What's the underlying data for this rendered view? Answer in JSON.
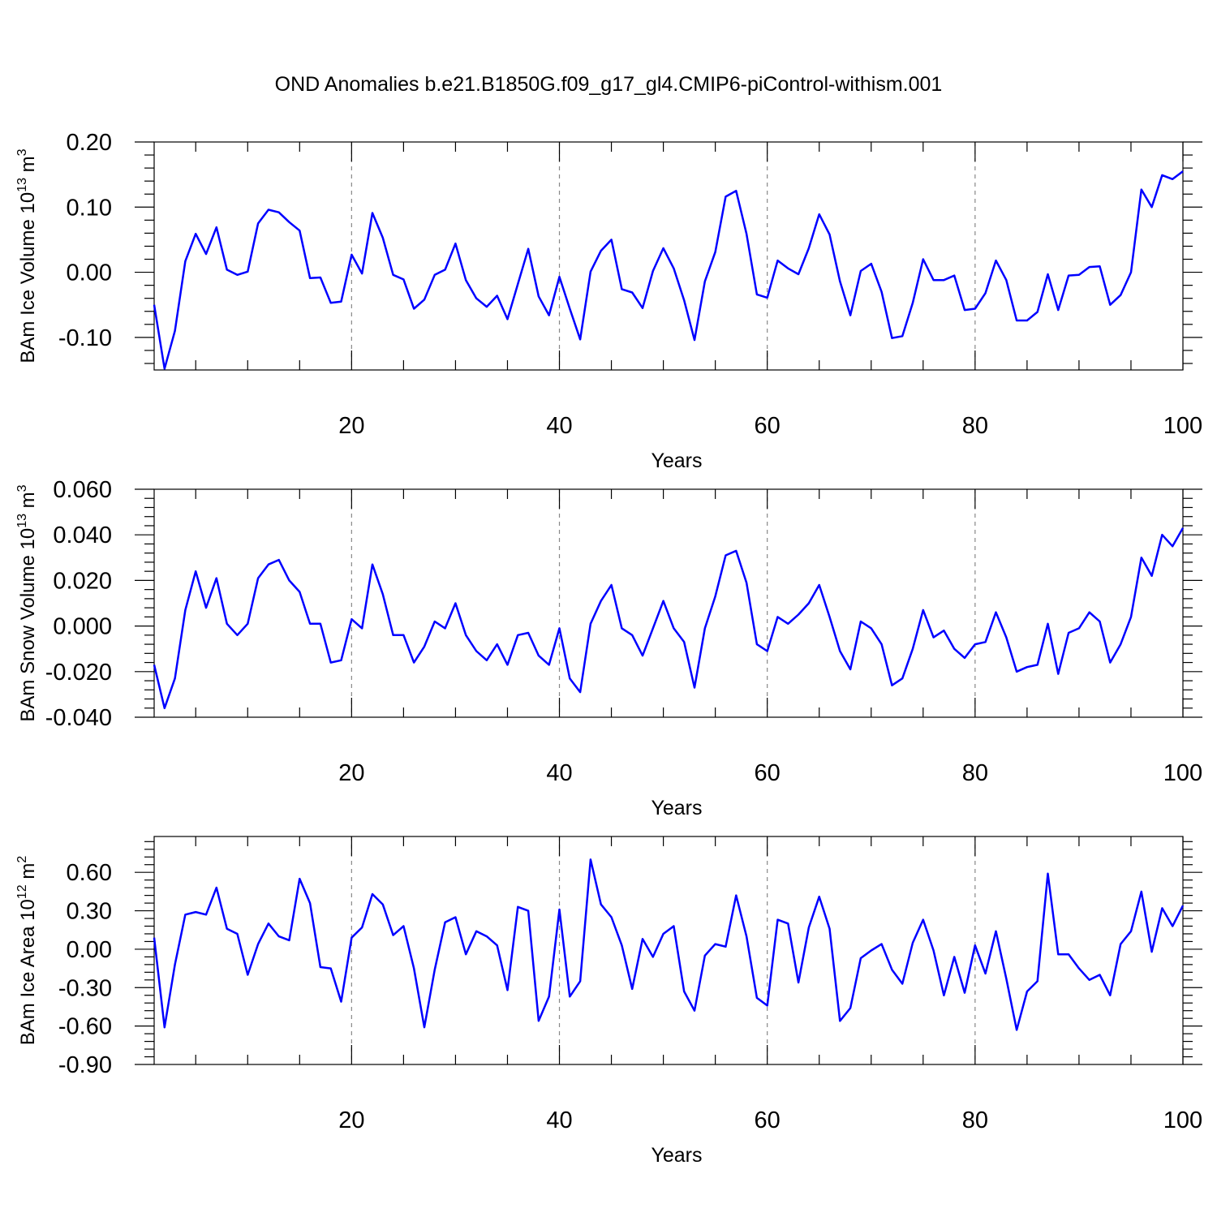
{
  "title": "OND Anomalies b.e21.B1850G.f09_g17_gl4.CMIP6-piControl-withism.001",
  "line_color": "#0000ff",
  "chart_data": [
    {
      "type": "line",
      "xlabel": "Years",
      "ylabel": {
        "prefix": "BAm Ice Volume 10",
        "exp": "13",
        "unit": " m",
        "unit_exp": "3"
      },
      "xlim": [
        1,
        100
      ],
      "ylim": [
        -0.15,
        0.2
      ],
      "xticks": [
        20,
        40,
        60,
        80,
        100
      ],
      "yticks": [
        -0.1,
        0.0,
        0.1,
        0.2
      ],
      "ytick_labels": [
        "-0.10",
        "0.00",
        "0.10",
        "0.20"
      ],
      "y": [
        -0.05,
        -0.148,
        -0.09,
        0.017,
        0.059,
        0.028,
        0.069,
        0.004,
        -0.004,
        0.001,
        0.075,
        0.096,
        0.092,
        0.077,
        0.064,
        -0.009,
        -0.008,
        -0.047,
        -0.045,
        0.027,
        -0.002,
        0.091,
        0.053,
        -0.004,
        -0.011,
        -0.056,
        -0.042,
        -0.004,
        0.004,
        0.044,
        -0.012,
        -0.04,
        -0.053,
        -0.036,
        -0.072,
        -0.018,
        0.036,
        -0.037,
        -0.066,
        -0.007,
        -0.056,
        -0.103,
        0.001,
        0.033,
        0.05,
        -0.026,
        -0.031,
        -0.055,
        0.002,
        0.037,
        0.006,
        -0.043,
        -0.104,
        -0.014,
        0.031,
        0.116,
        0.125,
        0.059,
        -0.034,
        -0.039,
        0.018,
        0.006,
        -0.003,
        0.037,
        0.089,
        0.058,
        -0.014,
        -0.066,
        0.002,
        0.013,
        -0.03,
        -0.101,
        -0.098,
        -0.047,
        0.02,
        -0.012,
        -0.012,
        -0.005,
        -0.058,
        -0.056,
        -0.032,
        0.018,
        -0.012,
        -0.074,
        -0.074,
        -0.061,
        -0.003,
        -0.058,
        -0.005,
        -0.004,
        0.008,
        0.009,
        -0.05,
        -0.035,
        0.0,
        0.127,
        0.1,
        0.149,
        0.143,
        0.155
      ]
    },
    {
      "type": "line",
      "xlabel": "Years",
      "ylabel": {
        "prefix": "BAm Snow Volume 10",
        "exp": "13",
        "unit": " m",
        "unit_exp": "3"
      },
      "xlim": [
        1,
        100
      ],
      "ylim": [
        -0.04,
        0.06
      ],
      "xticks": [
        20,
        40,
        60,
        80,
        100
      ],
      "yticks": [
        -0.04,
        -0.02,
        0.0,
        0.02,
        0.04,
        0.06
      ],
      "ytick_labels": [
        "-0.040",
        "-0.020",
        "0.000",
        "0.020",
        "0.040",
        "0.060"
      ],
      "y": [
        -0.017,
        -0.036,
        -0.023,
        0.007,
        0.024,
        0.008,
        0.021,
        0.001,
        -0.004,
        0.001,
        0.021,
        0.027,
        0.029,
        0.02,
        0.015,
        0.001,
        0.001,
        -0.016,
        -0.015,
        0.003,
        -0.001,
        0.027,
        0.014,
        -0.004,
        -0.004,
        -0.016,
        -0.009,
        0.002,
        -0.001,
        0.01,
        -0.004,
        -0.011,
        -0.015,
        -0.008,
        -0.017,
        -0.004,
        -0.003,
        -0.013,
        -0.017,
        -0.001,
        -0.023,
        -0.029,
        0.001,
        0.011,
        0.018,
        -0.001,
        -0.004,
        -0.013,
        -0.001,
        0.011,
        -0.001,
        -0.007,
        -0.027,
        -0.001,
        0.013,
        0.031,
        0.033,
        0.019,
        -0.008,
        -0.011,
        0.004,
        0.001,
        0.005,
        0.01,
        0.018,
        0.004,
        -0.011,
        -0.019,
        0.002,
        -0.001,
        -0.008,
        -0.026,
        -0.023,
        -0.01,
        0.007,
        -0.005,
        -0.002,
        -0.01,
        -0.014,
        -0.008,
        -0.007,
        0.006,
        -0.005,
        -0.02,
        -0.018,
        -0.017,
        0.001,
        -0.021,
        -0.003,
        -0.001,
        0.006,
        0.002,
        -0.016,
        -0.008,
        0.004,
        0.03,
        0.022,
        0.04,
        0.035,
        0.043
      ]
    },
    {
      "type": "line",
      "xlabel": "Years",
      "ylabel": {
        "prefix": "BAm Ice Area 10",
        "exp": "12",
        "unit": " m",
        "unit_exp": "2"
      },
      "xlim": [
        1,
        100
      ],
      "ylim": [
        -0.9,
        0.88
      ],
      "xticks": [
        20,
        40,
        60,
        80,
        100
      ],
      "yticks": [
        -0.9,
        -0.6,
        -0.3,
        0.0,
        0.3,
        0.6
      ],
      "ytick_labels": [
        "-0.90",
        "-0.60",
        "-0.30",
        "0.00",
        "0.30",
        "0.60"
      ],
      "y": [
        0.09,
        -0.61,
        -0.12,
        0.27,
        0.29,
        0.27,
        0.48,
        0.16,
        0.12,
        -0.2,
        0.04,
        0.2,
        0.1,
        0.07,
        0.55,
        0.36,
        -0.14,
        -0.15,
        -0.41,
        0.09,
        0.17,
        0.43,
        0.35,
        0.11,
        0.18,
        -0.15,
        -0.61,
        -0.16,
        0.21,
        0.25,
        -0.04,
        0.14,
        0.1,
        0.03,
        -0.32,
        0.33,
        0.3,
        -0.56,
        -0.37,
        0.31,
        -0.37,
        -0.25,
        0.7,
        0.35,
        0.25,
        0.03,
        -0.31,
        0.08,
        -0.06,
        0.12,
        0.18,
        -0.33,
        -0.48,
        -0.05,
        0.04,
        0.02,
        0.42,
        0.1,
        -0.38,
        -0.44,
        0.23,
        0.2,
        -0.26,
        0.17,
        0.41,
        0.16,
        -0.56,
        -0.46,
        -0.07,
        -0.01,
        0.04,
        -0.16,
        -0.27,
        0.05,
        0.23,
        -0.01,
        -0.36,
        -0.06,
        -0.34,
        0.03,
        -0.19,
        0.14,
        -0.23,
        -0.63,
        -0.33,
        -0.25,
        0.59,
        -0.04,
        -0.04,
        -0.15,
        -0.24,
        -0.2,
        -0.36,
        0.04,
        0.14,
        0.45,
        -0.02,
        0.32,
        0.18,
        0.34
      ]
    }
  ]
}
